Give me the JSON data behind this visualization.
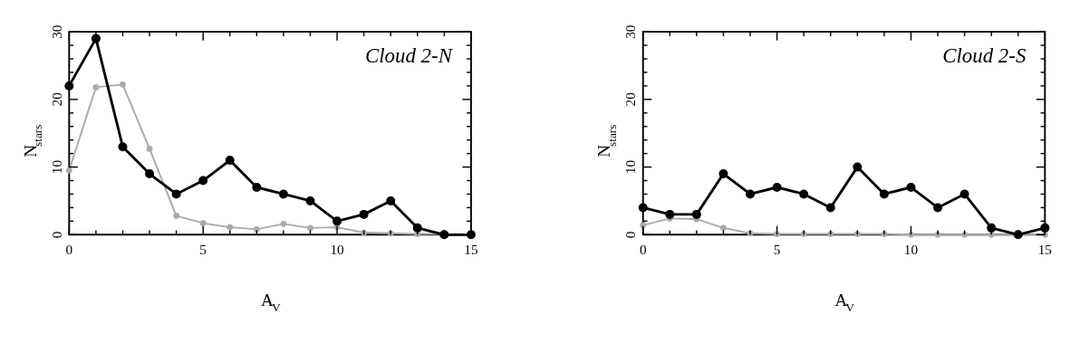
{
  "chart_data": [
    {
      "type": "line",
      "xlabel": "A$_{V}$",
      "ylabel": "N$_{stars}$",
      "annotations": [
        "Cloud 2-N"
      ],
      "marker": "circle",
      "line_style": "solid",
      "x": [
        0,
        1,
        2,
        3,
        4,
        5,
        6,
        7,
        8,
        9,
        10,
        11,
        12,
        13,
        14,
        15
      ],
      "xlim": [
        0,
        15
      ],
      "xticks": [
        0,
        {
          "value": 1,
          "label": null
        },
        {
          "value": 2,
          "label": null
        },
        {
          "value": 3,
          "label": null
        },
        {
          "value": 4,
          "label": null
        },
        5,
        {
          "value": 6,
          "label": null
        },
        {
          "value": 7,
          "label": null
        },
        {
          "value": 8,
          "label": null
        },
        {
          "value": 9,
          "label": null
        },
        10,
        {
          "value": 11,
          "label": null
        },
        {
          "value": 12,
          "label": null
        },
        {
          "value": 13,
          "label": null
        },
        {
          "value": 14,
          "label": null
        },
        15
      ],
      "ylim": [
        0,
        30
      ],
      "yticks": [
        0,
        {
          "value": 2,
          "label": null
        },
        {
          "value": 4,
          "label": null
        },
        {
          "value": 6,
          "label": null
        },
        {
          "value": 8,
          "label": null
        },
        10,
        {
          "value": 12,
          "label": null
        },
        {
          "value": 14,
          "label": null
        },
        {
          "value": 16,
          "label": null
        },
        {
          "value": 18,
          "label": null
        },
        20,
        {
          "value": 22,
          "label": null
        },
        {
          "value": 24,
          "label": null
        },
        {
          "value": 26,
          "label": null
        },
        {
          "value": 28,
          "label": null
        },
        30
      ],
      "series": [
        {
          "color": "#aaaaaa",
          "values": [
            9.5,
            21.8,
            22.2,
            12.7,
            2.8,
            1.7,
            1.1,
            0.8,
            1.6,
            1.0,
            1.1,
            0.3,
            0.2,
            0.1,
            0.1,
            null
          ]
        },
        {
          "color": "#000000",
          "values": [
            22,
            29,
            13,
            9,
            6,
            8,
            11,
            7,
            6,
            5,
            2,
            3,
            5,
            1,
            0,
            0
          ]
        }
      ]
    },
    {
      "type": "line",
      "xlabel": "A$_{V}$",
      "ylabel": "N$_{stars}$",
      "annotations": [
        "Cloud 2-S"
      ],
      "marker": "circle",
      "line_style": "solid",
      "x": [
        0,
        1,
        2,
        3,
        4,
        5,
        6,
        7,
        8,
        9,
        10,
        11,
        12,
        13,
        14,
        15
      ],
      "xlim": [
        0,
        15
      ],
      "xticks": [
        0,
        {
          "value": 1,
          "label": null
        },
        {
          "value": 2,
          "label": null
        },
        {
          "value": 3,
          "label": null
        },
        {
          "value": 4,
          "label": null
        },
        5,
        {
          "value": 6,
          "label": null
        },
        {
          "value": 7,
          "label": null
        },
        {
          "value": 8,
          "label": null
        },
        {
          "value": 9,
          "label": null
        },
        10,
        {
          "value": 11,
          "label": null
        },
        {
          "value": 12,
          "label": null
        },
        {
          "value": 13,
          "label": null
        },
        {
          "value": 14,
          "label": null
        },
        15
      ],
      "ylim": [
        0,
        30
      ],
      "yticks": [
        0,
        {
          "value": 2,
          "label": null
        },
        {
          "value": 4,
          "label": null
        },
        {
          "value": 6,
          "label": null
        },
        {
          "value": 8,
          "label": null
        },
        10,
        {
          "value": 12,
          "label": null
        },
        {
          "value": 14,
          "label": null
        },
        {
          "value": 16,
          "label": null
        },
        {
          "value": 18,
          "label": null
        },
        20,
        {
          "value": 22,
          "label": null
        },
        {
          "value": 24,
          "label": null
        },
        {
          "value": 26,
          "label": null
        },
        {
          "value": 28,
          "label": null
        },
        30
      ],
      "series": [
        {
          "color": "#aaaaaa",
          "values": [
            1.4,
            2.4,
            2.3,
            1.0,
            0.2,
            0.1,
            0.1,
            0.1,
            0.1,
            0.1,
            0,
            0,
            0,
            0,
            0,
            0
          ]
        },
        {
          "color": "#000000",
          "values": [
            4,
            3,
            3,
            9,
            6,
            7,
            6,
            4,
            10,
            6,
            7,
            4,
            6,
            1,
            0,
            1
          ]
        }
      ]
    }
  ]
}
